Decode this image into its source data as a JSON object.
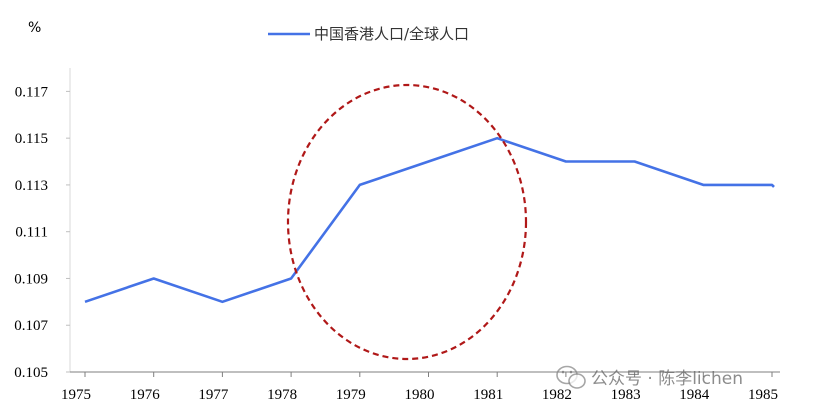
{
  "chart_data": {
    "type": "line",
    "unit_label": "%",
    "x": [
      "1975",
      "1976",
      "1977",
      "1978",
      "1979",
      "1980",
      "1981",
      "1982",
      "1983",
      "1984",
      "1985"
    ],
    "series": [
      {
        "name": "中国香港人口/全球人口",
        "color": "#4472E6",
        "values": [
          0.108,
          0.109,
          0.108,
          0.109,
          0.113,
          0.114,
          0.115,
          0.114,
          0.114,
          0.113,
          0.113
        ]
      }
    ],
    "ylim": [
      0.105,
      0.118
    ],
    "yticks": [
      0.105,
      0.107,
      0.109,
      0.111,
      0.113,
      0.115,
      0.117
    ],
    "ytick_labels": [
      "0.105",
      "0.107",
      "0.109",
      "0.111",
      "0.113",
      "0.115",
      "0.117"
    ],
    "legend_position": "top-center",
    "grid": false,
    "annotation": {
      "shape": "dashed-ellipse",
      "color": "#B01818",
      "around_x": "1980"
    }
  },
  "watermark": {
    "text": "公众号 · 陈李lichen",
    "icon": "wechat-icon"
  }
}
